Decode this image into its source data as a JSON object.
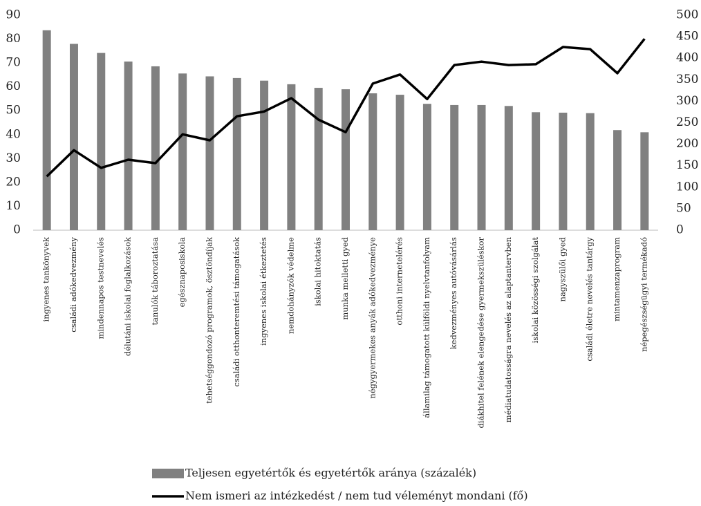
{
  "chart_data": {
    "type": "bar_line",
    "categories": [
      "ingyenes tankönyvek",
      "családi adókedvezmény",
      "mindennapos testnevelés",
      "délutáni iskolai foglalkozások",
      "tanulók táboroztatása",
      "egésznaposiskola",
      "tehetséggondozó programok, ösztöndíjak",
      "családi otthonteremtési támogatások",
      "ingyenes iskolai étkeztetés",
      "nemdohányzók védelme",
      "iskolai hitoktatás",
      "munka melletti gyed",
      "négygyermekes anyák adókedvezménye",
      "otthoni internetelérés",
      "államilag támogatott külföldi nyelvtanfolyam",
      "kedvezményes autóvásárlás",
      "diákhitel felének elengedése gyermekszüléskor",
      "médiatudatosságra nevelés az alaptantervben",
      "iskolai közösségi szolgálat",
      "nagyszülői gyed",
      "családi életre nevelés tantárgy",
      "mintamenzaprogram",
      "népegészségügyi termékadó"
    ],
    "series": [
      {
        "name": "Teljesen egyetértők és egyetértők aránya (százalék)",
        "type": "bar",
        "color": "#808080",
        "values": [
          83.7,
          78,
          74.2,
          70.6,
          68.6,
          65.6,
          64.4,
          63.7,
          62.6,
          61.1,
          59.6,
          59,
          57.3,
          56.7,
          52.9,
          52.4,
          52.4,
          52,
          49.4,
          49.2,
          49,
          41.9,
          41
        ]
      },
      {
        "name": "Nem ismeri az intézkedést / nem tud véleményt mondani (fő)",
        "type": "line",
        "color": "#000000",
        "axis": "y2",
        "values": [
          125,
          186,
          145,
          164,
          156,
          223,
          209,
          265,
          276,
          307,
          257,
          228,
          341,
          362,
          305,
          384,
          392,
          384,
          386,
          426,
          421,
          365,
          445
        ]
      }
    ],
    "ylim": [
      0,
      90
    ],
    "yticks": [
      0,
      10,
      20,
      30,
      40,
      50,
      60,
      70,
      80,
      90
    ],
    "y2lim": [
      0,
      500
    ],
    "y2ticks": [
      0,
      50,
      100,
      150,
      200,
      250,
      300,
      350,
      400,
      450,
      500
    ]
  }
}
